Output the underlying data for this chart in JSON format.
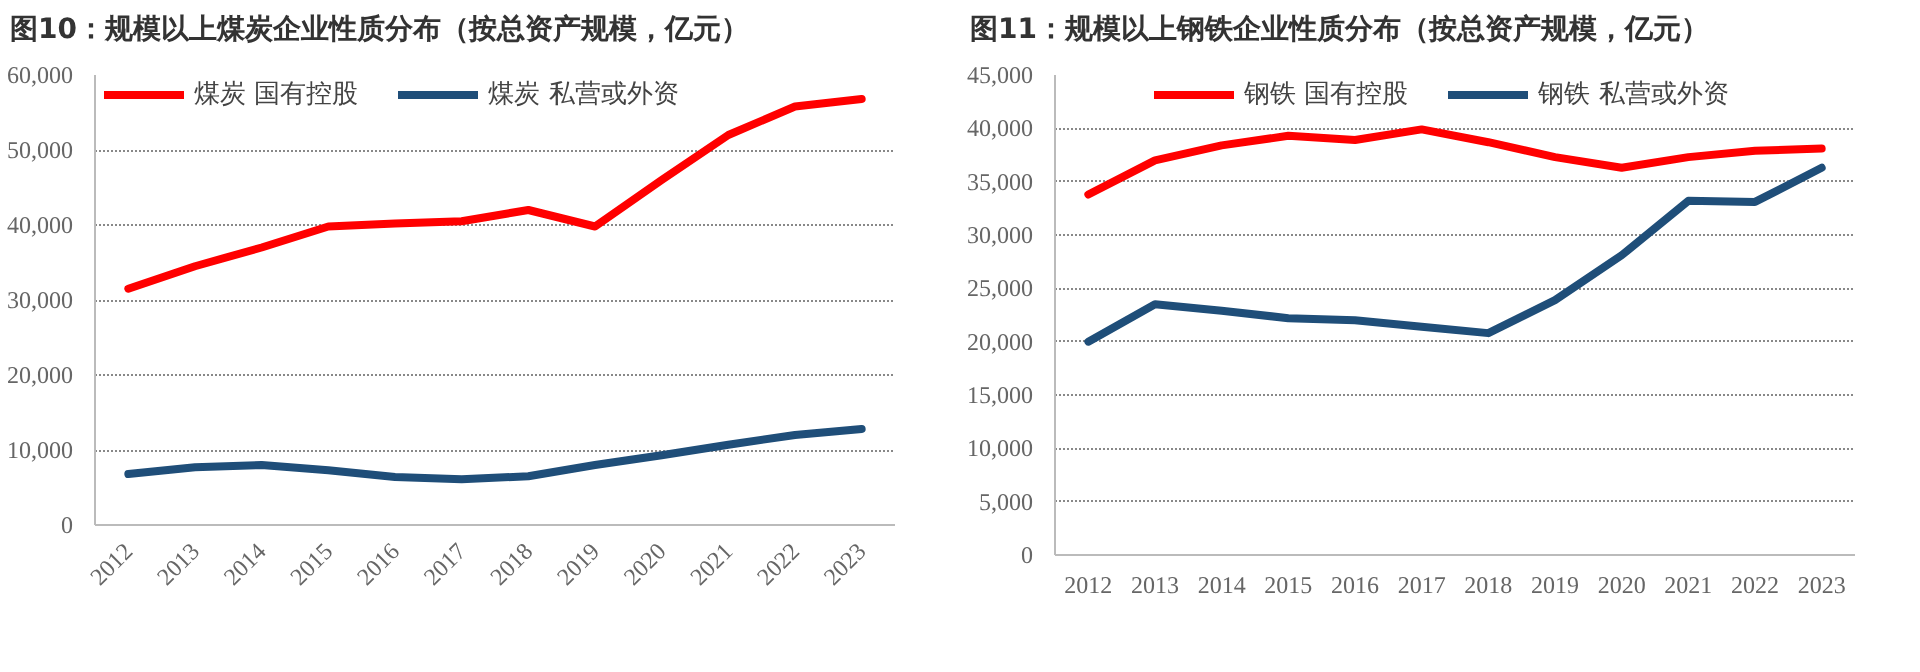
{
  "chart_data": [
    {
      "type": "line",
      "title": "图10：规模以上煤炭企业性质分布（按总资产规模，亿元）",
      "categories": [
        "2012",
        "2013",
        "2014",
        "2015",
        "2016",
        "2017",
        "2018",
        "2019",
        "2020",
        "2021",
        "2022",
        "2023"
      ],
      "series": [
        {
          "name": "煤炭 国有控股",
          "color": "#ff0000",
          "values": [
            31500,
            34500,
            37000,
            39800,
            40200,
            40500,
            42000,
            39800,
            46000,
            52000,
            55800,
            56800
          ]
        },
        {
          "name": "煤炭 私营或外资",
          "color": "#1f4e79",
          "values": [
            6800,
            7700,
            8000,
            7300,
            6400,
            6100,
            6500,
            8000,
            9300,
            10700,
            12000,
            12800
          ]
        }
      ],
      "ylim": [
        0,
        60000
      ],
      "yticks": [
        {
          "value": 0,
          "label": "0"
        },
        {
          "value": 10000,
          "label": "10,000"
        },
        {
          "value": 20000,
          "label": "20,000"
        },
        {
          "value": 30000,
          "label": "30,000"
        },
        {
          "value": 40000,
          "label": "40,000"
        },
        {
          "value": 50000,
          "label": "50,000"
        },
        {
          "value": 60000,
          "label": "60,000"
        }
      ],
      "grid": "y",
      "legend": "top",
      "line_style": "solid"
    },
    {
      "type": "line",
      "title": "图11：规模以上钢铁企业性质分布（按总资产规模，亿元）",
      "categories": [
        "2012",
        "2013",
        "2014",
        "2015",
        "2016",
        "2017",
        "2018",
        "2019",
        "2020",
        "2021",
        "2022",
        "2023"
      ],
      "series": [
        {
          "name": "钢铁 国有控股",
          "color": "#ff0000",
          "values": [
            33800,
            37000,
            38400,
            39300,
            38900,
            39900,
            38700,
            37300,
            36300,
            37300,
            37900,
            38100
          ]
        },
        {
          "name": "钢铁 私营或外资",
          "color": "#1f4e79",
          "values": [
            20000,
            23500,
            22900,
            22200,
            22000,
            21400,
            20800,
            23900,
            28100,
            33200,
            33100,
            36300
          ]
        }
      ],
      "ylim": [
        0,
        45000
      ],
      "yticks": [
        {
          "value": 0,
          "label": "0"
        },
        {
          "value": 5000,
          "label": "5,000"
        },
        {
          "value": 10000,
          "label": "10,000"
        },
        {
          "value": 15000,
          "label": "15,000"
        },
        {
          "value": 20000,
          "label": "20,000"
        },
        {
          "value": 25000,
          "label": "25,000"
        },
        {
          "value": 30000,
          "label": "30,000"
        },
        {
          "value": 35000,
          "label": "35,000"
        },
        {
          "value": 40000,
          "label": "40,000"
        },
        {
          "value": 45000,
          "label": "45,000"
        }
      ],
      "grid": "y",
      "legend": "top",
      "line_style": "solid"
    }
  ]
}
